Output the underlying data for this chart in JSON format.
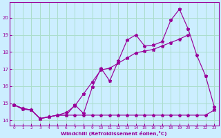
{
  "xlabel": "Windchill (Refroidissement éolien,°C)",
  "bg_color": "#cceeff",
  "grid_color": "#aaddcc",
  "line_color": "#990099",
  "xlim_min": -0.5,
  "xlim_max": 23.5,
  "ylim_min": 13.7,
  "ylim_max": 20.9,
  "xticks": [
    0,
    1,
    2,
    3,
    4,
    5,
    6,
    7,
    8,
    9,
    10,
    11,
    12,
    13,
    14,
    15,
    16,
    17,
    18,
    19,
    20,
    21,
    22,
    23
  ],
  "yticks": [
    14,
    15,
    16,
    17,
    18,
    19,
    20
  ],
  "line1_x": [
    0,
    1,
    2,
    3,
    4,
    5,
    6,
    7,
    8,
    9,
    10,
    11,
    12,
    13,
    14,
    15,
    16,
    17,
    18,
    19,
    20,
    21,
    22,
    23
  ],
  "line1_y": [
    14.9,
    14.7,
    14.6,
    14.1,
    14.2,
    14.3,
    14.45,
    14.85,
    15.55,
    16.25,
    16.95,
    17.05,
    17.35,
    17.65,
    17.95,
    18.05,
    18.15,
    18.35,
    18.55,
    18.75,
    19.0,
    null,
    null,
    null
  ],
  "line2_x": [
    0,
    1,
    2,
    3,
    4,
    5,
    6,
    7,
    8,
    9,
    10,
    11,
    12,
    13,
    14,
    15,
    16,
    17,
    18,
    19,
    20,
    21,
    22,
    23
  ],
  "line2_y": [
    14.9,
    14.7,
    14.6,
    14.1,
    14.2,
    14.3,
    14.3,
    14.9,
    14.4,
    15.95,
    17.05,
    16.3,
    17.5,
    18.7,
    19.0,
    18.35,
    18.4,
    18.6,
    19.85,
    20.5,
    19.35,
    17.8,
    16.6,
    14.8
  ],
  "line3_x": [
    0,
    1,
    2,
    3,
    4,
    5,
    6,
    7,
    8,
    9,
    10,
    11,
    12,
    13,
    14,
    15,
    16,
    17,
    18,
    19,
    20,
    21,
    22,
    23
  ],
  "line3_y": [
    14.9,
    14.65,
    14.6,
    14.1,
    14.2,
    14.3,
    14.3,
    14.3,
    14.3,
    14.3,
    14.3,
    14.3,
    14.3,
    14.3,
    14.3,
    14.3,
    14.3,
    14.3,
    14.3,
    14.3,
    14.3,
    14.3,
    14.3,
    14.6
  ]
}
